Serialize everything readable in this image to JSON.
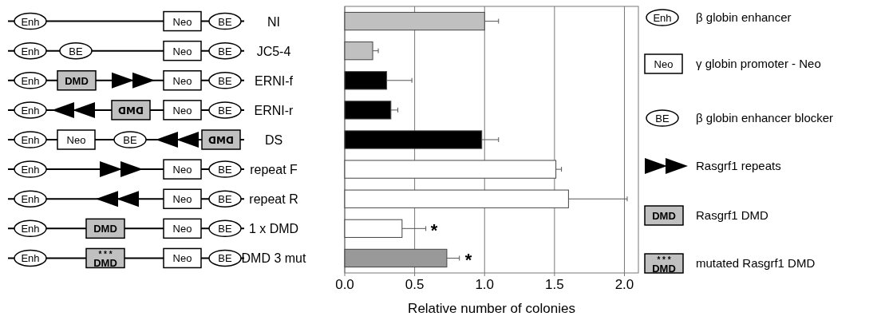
{
  "chart_data": {
    "type": "bar",
    "orientation": "horizontal",
    "xlabel": "Relative number of colonies",
    "categories": [
      "NI",
      "JC5-4",
      "ERNI-f",
      "ERNI-r",
      "DS",
      "repeat F",
      "repeat R",
      "1 x DMD",
      "DMD 3 mut"
    ],
    "values": [
      1.0,
      0.2,
      0.3,
      0.33,
      0.98,
      1.51,
      1.6,
      0.41,
      0.73
    ],
    "colors": [
      "#c0c0c0",
      "#c0c0c0",
      "#000000",
      "#000000",
      "#000000",
      "#ffffff",
      "#ffffff",
      "#ffffff",
      "#999999"
    ],
    "errors": [
      [
        1.0,
        1.1
      ],
      [
        0.2,
        0.24
      ],
      [
        0.3,
        0.48
      ],
      [
        0.33,
        0.38
      ],
      [
        0.98,
        1.1
      ],
      [
        1.51,
        1.55
      ],
      [
        1.6,
        2.02
      ],
      [
        0.41,
        0.58
      ],
      [
        0.73,
        0.82
      ]
    ],
    "xlim": [
      0,
      2.1
    ],
    "xticks": [
      {
        "value": 0,
        "label": "0.0"
      },
      0.5,
      {
        "value": 1,
        "label": "1.0"
      },
      1.5,
      {
        "value": 2,
        "label": "2.0"
      }
    ],
    "grid": "x",
    "annotations": [
      "Enh",
      "Neo",
      "BE",
      "DMD",
      "* * *",
      "ᗡMᗡ",
      "β globin enhancer",
      "γ globin promoter - Neo",
      "β globin enhancer blocker",
      "Rasgrf1 repeats",
      "Rasgrf1 DMD",
      "mutated Rasgrf1 DMD",
      "*",
      "*"
    ]
  }
}
